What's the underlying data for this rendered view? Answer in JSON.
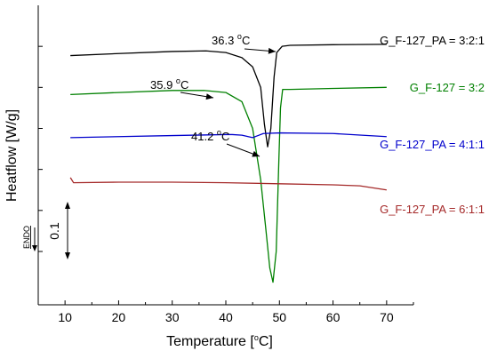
{
  "chart_data": {
    "type": "line",
    "xlabel": "Temperature [°C]",
    "xlabel_parts": {
      "main": "Temperature [",
      "sup": "o",
      "after": "C]"
    },
    "ylabel": "Heatflow [W/g]",
    "xlim": [
      5,
      75
    ],
    "xticks": [
      10,
      20,
      30,
      40,
      50,
      60,
      70
    ],
    "ylim": [
      -1.46,
      0.0
    ],
    "yticks": [
      -0.2,
      -0.4,
      -0.6,
      -0.8,
      -1.0,
      -1.2
    ],
    "y_tick_labels_shown": false,
    "grid": false,
    "scale_bar": {
      "label": "0.1",
      "value": 0.1
    },
    "endo_label": "ENDO",
    "series": [
      {
        "name": "G_F-127_PA = 3:2:1",
        "color": "#000000",
        "x": [
          11,
          20,
          30,
          36.3,
          40,
          43,
          45,
          46.5,
          47.2,
          47.8,
          48.4,
          49,
          49.5,
          50.5,
          52,
          60,
          70
        ],
        "y": [
          -0.245,
          -0.235,
          -0.225,
          -0.222,
          -0.23,
          -0.255,
          -0.3,
          -0.4,
          -0.58,
          -0.69,
          -0.6,
          -0.35,
          -0.23,
          -0.2,
          -0.195,
          -0.192,
          -0.19
        ]
      },
      {
        "name": "G_F-127 = 3:2",
        "color": "#008000",
        "x": [
          11,
          20,
          30,
          35.9,
          40,
          43,
          45,
          46.5,
          47.5,
          48.2,
          48.8,
          49.4,
          49.9,
          50.2,
          50.6,
          52,
          60,
          70
        ],
        "y": [
          -0.435,
          -0.425,
          -0.415,
          -0.415,
          -0.425,
          -0.47,
          -0.6,
          -0.85,
          -1.1,
          -1.28,
          -1.35,
          -1.2,
          -0.75,
          -0.5,
          -0.41,
          -0.41,
          -0.405,
          -0.4
        ]
      },
      {
        "name": "G_F-127_PA = 4:1:1",
        "color": "#0000cc",
        "x": [
          11,
          20,
          30,
          40,
          41.2,
          43,
          45,
          46,
          47,
          50,
          60,
          70
        ],
        "y": [
          -0.645,
          -0.64,
          -0.635,
          -0.63,
          -0.63,
          -0.633,
          -0.645,
          -0.635,
          -0.625,
          -0.622,
          -0.625,
          -0.64
        ]
      },
      {
        "name": "G_F-127_PA = 6:1:1",
        "color": "#a52a2a",
        "x": [
          11,
          11.6,
          20,
          30,
          40,
          50,
          60,
          65,
          70
        ],
        "y": [
          -0.84,
          -0.865,
          -0.862,
          -0.862,
          -0.865,
          -0.87,
          -0.875,
          -0.88,
          -0.9
        ]
      }
    ],
    "annotations": [
      {
        "text": "36.3",
        "sup": "o",
        "unit": "C",
        "series": "G_F-127_PA = 3:2:1",
        "x": 36.3,
        "y": -0.222
      },
      {
        "text": "35.9",
        "sup": "o",
        "unit": "C",
        "series": "G_F-127 = 3:2",
        "x": 35.9,
        "y": -0.415
      },
      {
        "text": "41.2",
        "sup": "o",
        "unit": "C",
        "series": "G_F-127_PA = 4:1:1",
        "x": 41.2,
        "y": -0.63
      }
    ]
  }
}
